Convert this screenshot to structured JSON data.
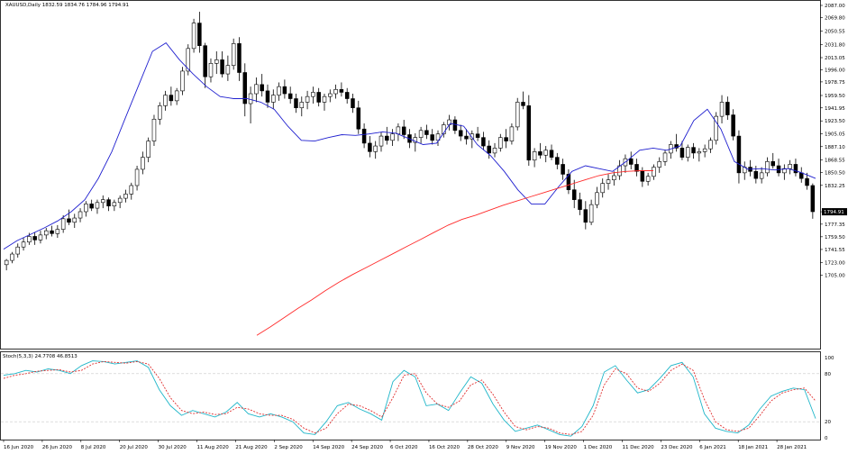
{
  "window": {
    "title": "XAUUSD,Daily  1832.59 1834.76 1784.96 1794.91"
  },
  "colors": {
    "background": "#ffffff",
    "frame": "#000000",
    "grid": "#c8c8c8",
    "candle": "#000000",
    "ma_fast": "#1f1fcf",
    "ma_slow": "#ff2a2a",
    "stoch_main": "#1fb6c9",
    "stoch_signal": "#e03030",
    "current_price_bg": "#000000",
    "current_price_fg": "#ffffff"
  },
  "chart_data": [
    {
      "type": "candlestick",
      "title": "XAUUSD,Daily  1832.59 1834.76 1784.96 1794.91",
      "ylim": [
        1605,
        2087
      ],
      "y_ticks": [
        "2087.00",
        "2069.80",
        "2050.55",
        "2031.80",
        "2013.05",
        "1996.00",
        "1978.75",
        "1959.50",
        "1941.95",
        "1923.50",
        "1905.05",
        "1887.10",
        "1868.55",
        "1850.50",
        "1832.25",
        "1794.91",
        "1777.35",
        "1759.50",
        "1741.55",
        "1723.00",
        "1705.00"
      ],
      "current_price": "1794.91",
      "x_labels": [
        "16 Jun 2020",
        "26 Jun 2020",
        "8 Jul 2020",
        "20 Jul 2020",
        "30 Jul 2020",
        "11 Aug 2020",
        "21 Aug 2020",
        "2 Sep 2020",
        "14 Sep 2020",
        "24 Sep 2020",
        "6 Oct 2020",
        "16 Oct 2020",
        "28 Oct 2020",
        "9 Nov 2020",
        "19 Nov 2020",
        "1 Dec 2020",
        "11 Dec 2020",
        "23 Dec 2020",
        "6 Jan 2021",
        "18 Jan 2021",
        "28 Jan 2021"
      ],
      "candles": [
        [
          1720,
          1728,
          1712,
          1726
        ],
        [
          1726,
          1738,
          1722,
          1735
        ],
        [
          1735,
          1750,
          1730,
          1745
        ],
        [
          1745,
          1758,
          1740,
          1752
        ],
        [
          1752,
          1765,
          1748,
          1760
        ],
        [
          1760,
          1766,
          1748,
          1755
        ],
        [
          1755,
          1768,
          1750,
          1762
        ],
        [
          1762,
          1772,
          1756,
          1768
        ],
        [
          1768,
          1775,
          1760,
          1764
        ],
        [
          1764,
          1776,
          1758,
          1770
        ],
        [
          1770,
          1790,
          1765,
          1785
        ],
        [
          1785,
          1798,
          1776,
          1780
        ],
        [
          1780,
          1792,
          1772,
          1786
        ],
        [
          1786,
          1800,
          1780,
          1795
        ],
        [
          1795,
          1810,
          1788,
          1806
        ],
        [
          1806,
          1812,
          1796,
          1800
        ],
        [
          1800,
          1812,
          1792,
          1808
        ],
        [
          1808,
          1818,
          1800,
          1812
        ],
        [
          1812,
          1815,
          1796,
          1803
        ],
        [
          1803,
          1812,
          1796,
          1808
        ],
        [
          1808,
          1818,
          1800,
          1814
        ],
        [
          1814,
          1826,
          1808,
          1820
        ],
        [
          1820,
          1836,
          1812,
          1832
        ],
        [
          1832,
          1860,
          1825,
          1855
        ],
        [
          1855,
          1880,
          1848,
          1872
        ],
        [
          1872,
          1900,
          1865,
          1895
        ],
        [
          1895,
          1932,
          1888,
          1926
        ],
        [
          1926,
          1950,
          1918,
          1945
        ],
        [
          1945,
          1966,
          1938,
          1960
        ],
        [
          1960,
          1972,
          1945,
          1952
        ],
        [
          1952,
          1970,
          1946,
          1966
        ],
        [
          1966,
          2000,
          1960,
          1994
        ],
        [
          1994,
          2032,
          1988,
          2026
        ],
        [
          2026,
          2068,
          2020,
          2062
        ],
        [
          2062,
          2078,
          2020,
          2030
        ],
        [
          2030,
          2034,
          1970,
          1986
        ],
        [
          1986,
          2012,
          1978,
          2005
        ],
        [
          2005,
          2022,
          1990,
          2010
        ],
        [
          2010,
          2022,
          1985,
          1990
        ],
        [
          1990,
          2016,
          1980,
          2002
        ],
        [
          2002,
          2040,
          1996,
          2033
        ],
        [
          2033,
          2042,
          1980,
          1992
        ],
        [
          1992,
          2005,
          1930,
          1948
        ],
        [
          1948,
          1972,
          1920,
          1962
        ],
        [
          1962,
          1985,
          1950,
          1975
        ],
        [
          1975,
          1990,
          1958,
          1966
        ],
        [
          1966,
          1975,
          1942,
          1950
        ],
        [
          1950,
          1968,
          1940,
          1960
        ],
        [
          1960,
          1978,
          1952,
          1972
        ],
        [
          1972,
          1982,
          1955,
          1962
        ],
        [
          1962,
          1972,
          1948,
          1955
        ],
        [
          1955,
          1962,
          1935,
          1942
        ],
        [
          1942,
          1958,
          1930,
          1950
        ],
        [
          1950,
          1966,
          1940,
          1958
        ],
        [
          1958,
          1972,
          1948,
          1964
        ],
        [
          1964,
          1970,
          1944,
          1950
        ],
        [
          1950,
          1962,
          1938,
          1958
        ],
        [
          1958,
          1968,
          1950,
          1962
        ],
        [
          1962,
          1975,
          1955,
          1968
        ],
        [
          1968,
          1978,
          1958,
          1964
        ],
        [
          1964,
          1970,
          1948,
          1955
        ],
        [
          1955,
          1962,
          1935,
          1942
        ],
        [
          1942,
          1952,
          1905,
          1912
        ],
        [
          1912,
          1920,
          1885,
          1892
        ],
        [
          1892,
          1902,
          1872,
          1880
        ],
        [
          1880,
          1895,
          1870,
          1888
        ],
        [
          1888,
          1908,
          1880,
          1902
        ],
        [
          1902,
          1915,
          1890,
          1896
        ],
        [
          1896,
          1912,
          1888,
          1905
        ],
        [
          1905,
          1920,
          1895,
          1915
        ],
        [
          1915,
          1925,
          1898,
          1904
        ],
        [
          1904,
          1912,
          1885,
          1893
        ],
        [
          1893,
          1906,
          1880,
          1900
        ],
        [
          1900,
          1915,
          1892,
          1910
        ],
        [
          1910,
          1918,
          1898,
          1904
        ],
        [
          1904,
          1912,
          1890,
          1896
        ],
        [
          1896,
          1910,
          1888,
          1905
        ],
        [
          1905,
          1922,
          1900,
          1918
        ],
        [
          1918,
          1932,
          1910,
          1925
        ],
        [
          1925,
          1930,
          1905,
          1910
        ],
        [
          1910,
          1918,
          1895,
          1902
        ],
        [
          1902,
          1912,
          1890,
          1898
        ],
        [
          1898,
          1910,
          1885,
          1905
        ],
        [
          1905,
          1915,
          1895,
          1900
        ],
        [
          1900,
          1908,
          1882,
          1888
        ],
        [
          1888,
          1896,
          1870,
          1878
        ],
        [
          1878,
          1892,
          1872,
          1885
        ],
        [
          1885,
          1905,
          1880,
          1900
        ],
        [
          1900,
          1912,
          1885,
          1895
        ],
        [
          1895,
          1920,
          1890,
          1915
        ],
        [
          1915,
          1956,
          1910,
          1950
        ],
        [
          1950,
          1965,
          1940,
          1945
        ],
        [
          1945,
          1960,
          1860,
          1868
        ],
        [
          1868,
          1885,
          1858,
          1880
        ],
        [
          1880,
          1892,
          1870,
          1875
        ],
        [
          1875,
          1888,
          1865,
          1882
        ],
        [
          1882,
          1890,
          1868,
          1872
        ],
        [
          1872,
          1878,
          1855,
          1862
        ],
        [
          1862,
          1870,
          1840,
          1848
        ],
        [
          1848,
          1855,
          1820,
          1826
        ],
        [
          1826,
          1840,
          1800,
          1812
        ],
        [
          1812,
          1822,
          1790,
          1798
        ],
        [
          1798,
          1810,
          1770,
          1780
        ],
        [
          1780,
          1812,
          1776,
          1805
        ],
        [
          1805,
          1830,
          1800,
          1822
        ],
        [
          1822,
          1842,
          1815,
          1835
        ],
        [
          1835,
          1848,
          1826,
          1840
        ],
        [
          1840,
          1852,
          1832,
          1846
        ],
        [
          1846,
          1868,
          1840,
          1860
        ],
        [
          1860,
          1876,
          1850,
          1870
        ],
        [
          1870,
          1880,
          1855,
          1862
        ],
        [
          1862,
          1870,
          1845,
          1852
        ],
        [
          1852,
          1858,
          1830,
          1838
        ],
        [
          1838,
          1850,
          1832,
          1845
        ],
        [
          1845,
          1862,
          1840,
          1858
        ],
        [
          1858,
          1872,
          1850,
          1866
        ],
        [
          1866,
          1882,
          1860,
          1878
        ],
        [
          1878,
          1895,
          1870,
          1890
        ],
        [
          1890,
          1905,
          1880,
          1885
        ],
        [
          1885,
          1895,
          1868,
          1872
        ],
        [
          1872,
          1890,
          1866,
          1886
        ],
        [
          1886,
          1892,
          1870,
          1878
        ],
        [
          1878,
          1885,
          1866,
          1880
        ],
        [
          1880,
          1890,
          1872,
          1884
        ],
        [
          1884,
          1900,
          1878,
          1896
        ],
        [
          1896,
          1936,
          1890,
          1930
        ],
        [
          1930,
          1960,
          1920,
          1950
        ],
        [
          1950,
          1958,
          1925,
          1932
        ],
        [
          1932,
          1940,
          1896,
          1902
        ],
        [
          1902,
          1910,
          1835,
          1850
        ],
        [
          1850,
          1866,
          1840,
          1858
        ],
        [
          1858,
          1868,
          1845,
          1852
        ],
        [
          1852,
          1860,
          1835,
          1842
        ],
        [
          1842,
          1858,
          1835,
          1850
        ],
        [
          1850,
          1872,
          1845,
          1866
        ],
        [
          1866,
          1878,
          1856,
          1860
        ],
        [
          1860,
          1870,
          1845,
          1850
        ],
        [
          1850,
          1862,
          1840,
          1856
        ],
        [
          1856,
          1868,
          1848,
          1862
        ],
        [
          1862,
          1870,
          1845,
          1850
        ],
        [
          1850,
          1858,
          1836,
          1842
        ],
        [
          1842,
          1850,
          1826,
          1832
        ],
        [
          1832,
          1835,
          1785,
          1795
        ]
      ],
      "series": [
        {
          "values": [
            1742,
            1754,
            1763,
            1772,
            1782,
            1795,
            1812,
            1842,
            1880,
            1928,
            1975,
            2022,
            2034,
            2010,
            1990,
            1972,
            1958,
            1955,
            1955,
            1950,
            1940,
            1916,
            1896,
            1895,
            1900,
            1904,
            1903,
            1905,
            1908,
            1906,
            1898,
            1890,
            1892,
            1920,
            1916,
            1890,
            1874,
            1852,
            1826,
            1806,
            1806,
            1830,
            1852,
            1860,
            1856,
            1852,
            1866,
            1882,
            1885,
            1882,
            1888,
            1924,
            1940,
            1912,
            1866,
            1855,
            1856,
            1854,
            1856,
            1850,
            1842
          ]
        },
        {
          "values": [
            1620,
            1632,
            1645,
            1658,
            1670,
            1683,
            1695,
            1706,
            1716,
            1726,
            1736,
            1746,
            1756,
            1766,
            1776,
            1784,
            1790,
            1797,
            1804,
            1810,
            1816,
            1822,
            1828,
            1834,
            1840,
            1846,
            1850,
            1852,
            1853,
            1853
          ]
        }
      ]
    },
    {
      "type": "line",
      "title": "Stoch(5,3,3) 24.7708 46.8513",
      "ylim": [
        0,
        100
      ],
      "y_ticks": [
        "100",
        "80",
        "20",
        "0"
      ],
      "levels": [
        80,
        20
      ],
      "series": [
        {
          "values": [
            78,
            80,
            84,
            82,
            86,
            84,
            80,
            90,
            96,
            95,
            92,
            94,
            96,
            88,
            60,
            40,
            28,
            34,
            30,
            26,
            32,
            44,
            30,
            26,
            30,
            26,
            20,
            6,
            4,
            20,
            40,
            44,
            36,
            30,
            22,
            70,
            84,
            76,
            40,
            42,
            34,
            56,
            76,
            68,
            42,
            22,
            8,
            12,
            16,
            10,
            4,
            2,
            14,
            40,
            82,
            90,
            72,
            56,
            60,
            74,
            90,
            94,
            76,
            30,
            12,
            8,
            6,
            16,
            36,
            52,
            58,
            62,
            60,
            24
          ]
        },
        {
          "values": [
            74,
            78,
            80,
            83,
            84,
            85,
            82,
            84,
            92,
            95,
            94,
            93,
            95,
            92,
            74,
            50,
            34,
            30,
            32,
            29,
            30,
            38,
            36,
            30,
            28,
            28,
            23,
            12,
            6,
            12,
            30,
            42,
            40,
            34,
            26,
            50,
            78,
            80,
            56,
            42,
            38,
            46,
            66,
            72,
            54,
            32,
            14,
            10,
            14,
            12,
            6,
            4,
            8,
            28,
            66,
            86,
            80,
            62,
            58,
            68,
            84,
            92,
            84,
            48,
            20,
            10,
            8,
            12,
            28,
            46,
            56,
            60,
            62,
            46
          ]
        }
      ]
    }
  ]
}
